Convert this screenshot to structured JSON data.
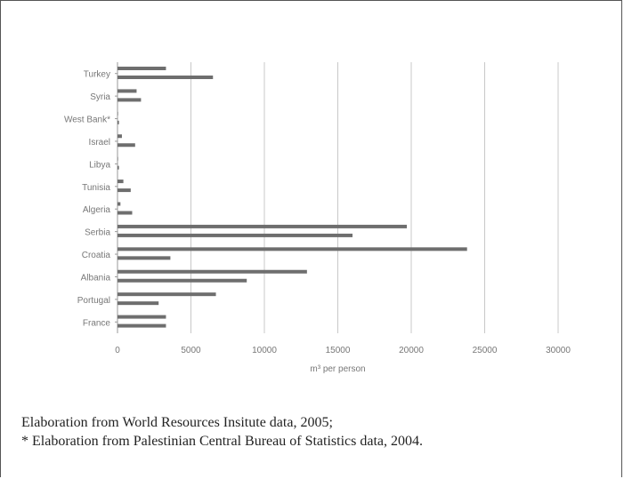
{
  "chart_data": {
    "type": "bar",
    "orientation": "horizontal",
    "title": "",
    "xlabel": "m³ per person",
    "ylabel": "",
    "xlim": [
      0,
      30000
    ],
    "x_ticks": [
      "0",
      "5000",
      "10000",
      "15000",
      "20000",
      "25000",
      "30000"
    ],
    "grid": true,
    "legend": "none",
    "bar_color": "#6e6e6e",
    "categories": [
      "Turkey",
      "Syria",
      "West Bank*",
      "Israel",
      "Libya",
      "Tunisia",
      "Algeria",
      "Serbia",
      "Croatia",
      "Albania",
      "Portugal",
      "France"
    ],
    "series": [
      {
        "values": [
          3300,
          1300,
          0,
          300,
          0,
          400,
          200,
          19700,
          23800,
          12900,
          6700,
          3300
        ]
      },
      {
        "values": [
          6500,
          1600,
          100,
          1200,
          100,
          900,
          1000,
          16000,
          3600,
          8800,
          2800,
          3300
        ]
      }
    ]
  },
  "notes": {
    "line1": "Elaboration from World Resources Insitute data, 2005;",
    "line2": "* Elaboration from Palestinian Central Bureau of Statistics data, 2004."
  }
}
